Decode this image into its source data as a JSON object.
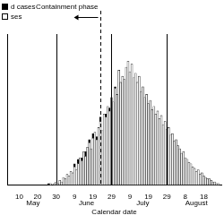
{
  "chart_data": {
    "type": "bar",
    "stacked": true,
    "legend": "upper left",
    "tick_labels": "x",
    "x_label": "Calendar date",
    "categories": [
      null,
      null,
      null,
      null,
      null,
      null,
      "10",
      null,
      null,
      null,
      null,
      null,
      null,
      null,
      null,
      null,
      "20",
      null,
      null,
      null,
      null,
      null,
      null,
      null,
      null,
      null,
      "30",
      null,
      null,
      null,
      null,
      null,
      null,
      null,
      null,
      null,
      "9",
      null,
      null,
      null,
      null,
      null,
      null,
      null,
      null,
      null,
      "19",
      null,
      null,
      null,
      null,
      null,
      null,
      null,
      null,
      null,
      "29",
      null,
      null,
      null,
      null,
      null,
      null,
      null,
      null,
      null,
      "9",
      null,
      null,
      null,
      null,
      null,
      null,
      null,
      null,
      null,
      "19",
      null,
      null,
      null,
      null,
      null,
      null,
      null,
      null,
      null,
      "29",
      null,
      null,
      null,
      null,
      null,
      null,
      null,
      null,
      null,
      "8",
      null,
      null,
      null,
      null,
      null,
      null,
      null,
      null,
      null,
      "18",
      null,
      null,
      null,
      null,
      null,
      null,
      null,
      null,
      null
    ],
    "month_labels": [
      {
        "label": "May",
        "start": 0,
        "end": 27
      },
      {
        "label": "June",
        "start": 28,
        "end": 57
      },
      {
        "label": "July",
        "start": 58,
        "end": 88
      },
      {
        "label": "August",
        "start": 89,
        "end": 115
      }
    ],
    "series": [
      {
        "name": "d cases",
        "color": "#000000",
        "values": [
          0,
          0,
          0,
          0,
          0,
          0,
          0,
          0,
          0,
          0,
          0,
          0,
          0,
          0,
          0,
          0,
          0,
          0,
          0,
          0,
          0,
          0,
          1,
          0,
          0,
          0,
          0,
          0,
          0,
          0,
          0,
          0,
          0,
          0,
          0,
          0,
          2,
          0,
          3,
          0,
          2,
          0,
          3,
          0,
          2,
          0,
          3,
          0,
          2,
          0,
          3,
          0,
          0,
          2,
          0,
          2,
          0,
          0,
          1,
          0,
          0,
          0,
          0,
          0,
          0,
          0,
          0,
          0,
          0,
          0,
          0,
          0,
          0,
          0,
          0,
          0,
          0,
          0,
          0,
          0,
          0,
          0,
          0,
          0,
          0,
          0,
          0,
          0,
          0,
          0,
          0,
          0,
          0,
          0,
          0,
          0,
          0,
          0,
          0,
          0,
          0,
          0,
          0,
          0,
          0,
          0,
          0,
          0,
          0,
          0,
          0,
          0,
          0,
          0,
          0,
          0
        ]
      },
      {
        "name": "ses",
        "color": "#ffffff",
        "values": [
          0,
          0,
          0,
          0,
          0,
          0,
          0,
          0,
          0,
          0,
          0,
          0,
          0,
          0,
          0,
          0,
          0,
          0,
          0,
          0,
          0,
          0,
          0,
          1,
          0,
          1,
          2,
          1,
          3,
          2,
          5,
          4,
          7,
          6,
          9,
          8,
          12,
          10,
          14,
          18,
          16,
          22,
          19,
          25,
          28,
          24,
          31,
          35,
          30,
          38,
          42,
          36,
          47,
          45,
          52,
          49,
          58,
          55,
          64,
          60,
          76,
          68,
          72,
          70,
          78,
          82,
          75,
          80,
          71,
          74,
          68,
          72,
          62,
          65,
          58,
          60,
          54,
          56,
          50,
          52,
          47,
          49,
          44,
          46,
          40,
          42,
          37,
          38,
          33,
          34,
          29,
          30,
          26,
          24,
          21,
          22,
          18,
          17,
          15,
          14,
          12,
          11,
          9,
          10,
          7,
          8,
          6,
          5,
          4,
          4,
          3,
          2,
          2,
          1,
          1,
          0
        ]
      }
    ],
    "ylim": [
      0,
      100
    ],
    "vertical_lines": [
      {
        "x": 26,
        "line_style": "solid"
      },
      {
        "x": 56,
        "line_style": "solid"
      },
      {
        "x": 86,
        "line_style": "solid"
      }
    ],
    "annotations": [
      {
        "text": "Containment phase",
        "x": 50,
        "line_style": "dashed"
      }
    ]
  }
}
